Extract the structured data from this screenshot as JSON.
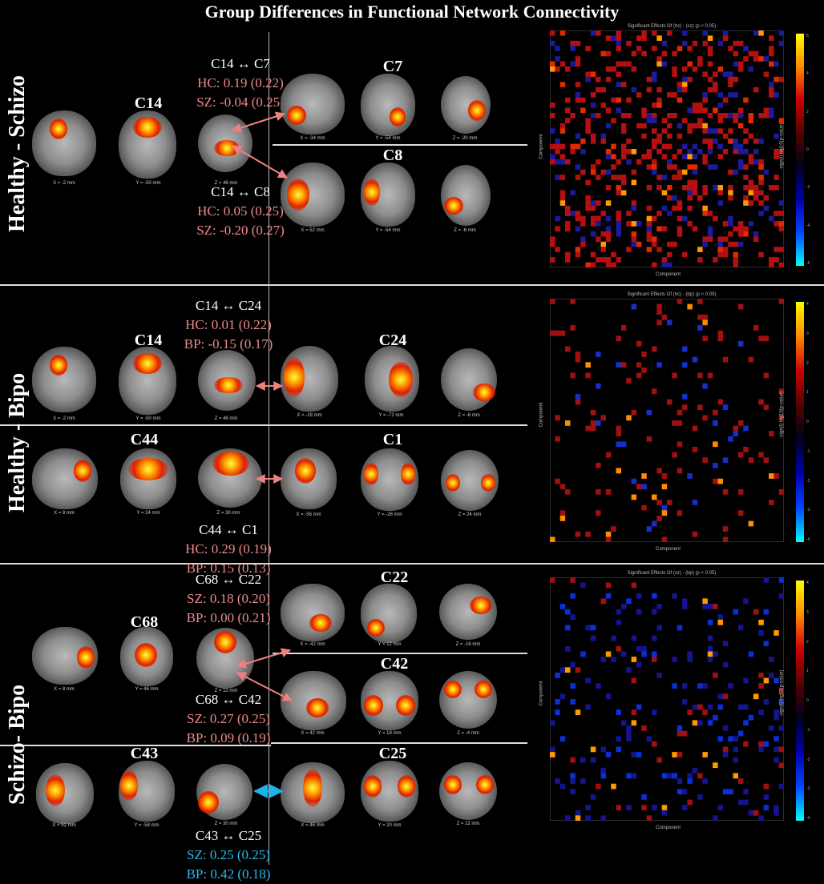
{
  "title": "Group Differences in Functional Network Connectivity",
  "rows": [
    {
      "label": "Healthy - Schizo",
      "source_component": "C14",
      "source_coords": [
        "X = -2 mm",
        "Y = -50 mm",
        "Z = 46 mm"
      ],
      "targets": [
        {
          "name": "C7",
          "coords": [
            "X = -34 mm",
            "Y = -54 mm",
            "Z = -20 mm"
          ]
        },
        {
          "name": "C8",
          "coords": [
            "X = 52 mm",
            "Y = -54 mm",
            "Z = -6 mm"
          ]
        }
      ],
      "stats": [
        {
          "pair": "C14 ↔ C7",
          "line1": "HC: 0.19 (0.22)",
          "line2": "SZ: -0.04 (0.25)"
        },
        {
          "pair": "C14 ↔ C8",
          "line1": "HC: 0.05 (0.25)",
          "line2": "SZ: -0.20 (0.27)"
        }
      ],
      "matrix": {
        "title": "Significant Effects Of (hc) - (sz) (p < 0.05)",
        "xlabel": "Component",
        "ylabel": "Component",
        "colorbar_label": "-sign(t) log10(p-value)",
        "colorbar_ticks": [
          "6",
          "4",
          "2",
          "0",
          "-2",
          "-4",
          "-6"
        ]
      }
    },
    {
      "label": "Healthy - Bipo",
      "source_component": "C14",
      "source_coords": [
        "X = -2 mm",
        "Y = -50 mm",
        "Z = 46 mm"
      ],
      "target": {
        "name": "C24",
        "coords": [
          "X = -28 mm",
          "Y = -72 mm",
          "Z = -6 mm"
        ]
      },
      "source2": {
        "name": "C44",
        "coords": [
          "X = 8 mm",
          "Y = 24 mm",
          "Z = 30 mm"
        ]
      },
      "target2": {
        "name": "C1",
        "coords": [
          "X = -56 mm",
          "Y = -28 mm",
          "Z = 24 mm"
        ]
      },
      "stats": [
        {
          "pair": "C14 ↔ C24",
          "line1": "HC: 0.01 (0.22)",
          "line2": "BP: -0.15 (0.17)"
        },
        {
          "pair": "C44 ↔ C1",
          "line1": "HC: 0.29 (0.19)",
          "line2": "BP:  0.15 (0.13)"
        }
      ],
      "matrix": {
        "title": "Significant Effects Of (hc) - (bp) (p < 0.05)",
        "xlabel": "Component",
        "ylabel": "Component",
        "colorbar_label": "-sign(t) log10(p-value)",
        "colorbar_ticks": [
          "4",
          "3",
          "2",
          "1",
          "0",
          "-1",
          "-2",
          "-3",
          "-4"
        ]
      }
    },
    {
      "label": "Schizo- Bipo",
      "source_component": "C68",
      "source_coords": [
        "X = 8 mm",
        "Y = 46 mm",
        "Z = 12 mm"
      ],
      "targets": [
        {
          "name": "C22",
          "coords": [
            "X = -42 mm",
            "Y = 12 mm",
            "Z = -16 mm"
          ]
        },
        {
          "name": "C42",
          "coords": [
            "X = 42 mm",
            "Y = 18 mm",
            "Z = -4 mm"
          ]
        }
      ],
      "source2": {
        "name": "C43",
        "coords": [
          "X = 52 mm",
          "Y = -58 mm",
          "Z = 30 mm"
        ]
      },
      "target2": {
        "name": "C25",
        "coords": [
          "X = 46 mm",
          "Y = 20 mm",
          "Z = 22 mm"
        ]
      },
      "stats": [
        {
          "pair": "C68 ↔ C22",
          "line1": "SZ: 0.18 (0.20)",
          "line2": "BP: 0.00 (0.21)"
        },
        {
          "pair": "C68 ↔ C42",
          "line1": "SZ: 0.27 (0.25)",
          "line2": "BP: 0.09 (0.19)"
        },
        {
          "pair": "C43 ↔ C25",
          "line1": "SZ: 0.25 (0.25)",
          "line2": "BP: 0.42 (0.18)"
        }
      ],
      "matrix": {
        "title": "Significant Effects Of (sz) - (bp) (p < 0.05)",
        "xlabel": "Component",
        "ylabel": "Component",
        "colorbar_label": "-sign(t) log10(p-value)",
        "colorbar_ticks": [
          "4",
          "3",
          "2",
          "1",
          "0",
          "-1",
          "-2",
          "-3",
          "-4"
        ]
      }
    }
  ],
  "colors": {
    "positive_stat": "#ee8a8a",
    "negative_stat": "#2fb8ee",
    "pink_arrow": "#f08080",
    "cyan_arrow": "#19b4ea"
  }
}
